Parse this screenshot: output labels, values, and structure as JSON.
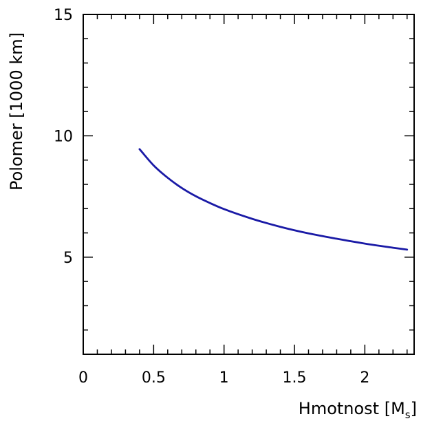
{
  "chart_data": {
    "type": "line",
    "title": "",
    "xlabel": "Hmotnost [M",
    "xlabel_subscript": "s",
    "xlabel_close": "]",
    "ylabel": "Polomer [1000 km]",
    "xlim": [
      0,
      2.35
    ],
    "ylim": [
      1,
      15
    ],
    "xticks": [
      0,
      0.5,
      1,
      1.5,
      2
    ],
    "xtick_labels": [
      "0",
      "0.5",
      "1",
      "1.5",
      "2"
    ],
    "yticks": [
      5,
      10,
      15
    ],
    "ytick_labels": [
      "5",
      "10",
      "15"
    ],
    "grid": false,
    "series": [
      {
        "color": "#1a1aa6",
        "x": [
          0.4,
          0.5,
          0.6,
          0.7,
          0.8,
          0.9,
          1.0,
          1.2,
          1.4,
          1.6,
          1.8,
          2.0,
          2.2,
          2.3
        ],
        "y": [
          9.45,
          8.78,
          8.27,
          7.85,
          7.51,
          7.23,
          6.98,
          6.58,
          6.25,
          5.98,
          5.76,
          5.56,
          5.39,
          5.31
        ]
      }
    ]
  }
}
